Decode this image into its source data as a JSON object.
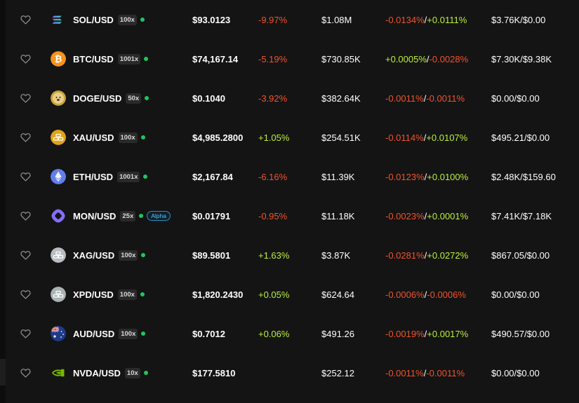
{
  "colors": {
    "positive": "#bdf13a",
    "negative": "#f0532d",
    "online": "#22c55e",
    "background": "#141414"
  },
  "rows": [
    {
      "symbol": "SOL/USD",
      "leverage": "100x",
      "icon": "solana-icon",
      "price": "$93.0123",
      "change": "-9.97%",
      "change_dir": "neg",
      "volume": "$1.08M",
      "funding_long": "-0.0134%",
      "funding_long_dir": "neg",
      "slash": "/",
      "funding_short": "+0.0111%",
      "funding_short_dir": "pos",
      "open_interest": "$3.76K/$0.00"
    },
    {
      "symbol": "BTC/USD",
      "leverage": "1001x",
      "icon": "bitcoin-icon",
      "price": "$74,167.14",
      "change": "-5.19%",
      "change_dir": "neg",
      "volume": "$730.85K",
      "funding_long": "+0.0005%",
      "funding_long_dir": "pos",
      "slash": "/",
      "funding_short": "-0.0028%",
      "funding_short_dir": "neg",
      "open_interest": "$7.30K/$9.38K"
    },
    {
      "symbol": "DOGE/USD",
      "leverage": "50x",
      "icon": "dogecoin-icon",
      "price": "$0.1040",
      "change": "-3.92%",
      "change_dir": "neg",
      "volume": "$382.64K",
      "funding_long": "-0.0011%",
      "funding_long_dir": "neg",
      "slash": "/",
      "funding_short": "-0.0011%",
      "funding_short_dir": "neg",
      "open_interest": "$0.00/$0.00"
    },
    {
      "symbol": "XAU/USD",
      "leverage": "100x",
      "icon": "gold-bars-icon",
      "price": "$4,985.2800",
      "change": "+1.05%",
      "change_dir": "pos",
      "volume": "$254.51K",
      "funding_long": "-0.0114%",
      "funding_long_dir": "neg",
      "slash": "/",
      "funding_short": "+0.0107%",
      "funding_short_dir": "pos",
      "open_interest": "$495.21/$0.00"
    },
    {
      "symbol": "ETH/USD",
      "leverage": "1001x",
      "icon": "ethereum-icon",
      "price": "$2,167.84",
      "change": "-6.16%",
      "change_dir": "neg",
      "volume": "$11.39K",
      "funding_long": "-0.0123%",
      "funding_long_dir": "neg",
      "slash": "/",
      "funding_short": "+0.0100%",
      "funding_short_dir": "pos",
      "open_interest": "$2.48K/$159.60"
    },
    {
      "symbol": "MON/USD",
      "leverage": "25x",
      "icon": "monad-icon",
      "badge": "Alpha",
      "price": "$0.01791",
      "change": "-0.95%",
      "change_dir": "neg",
      "volume": "$11.18K",
      "funding_long": "-0.0023%",
      "funding_long_dir": "neg",
      "slash": "/",
      "funding_short": "+0.0001%",
      "funding_short_dir": "pos",
      "open_interest": "$7.41K/$7.18K"
    },
    {
      "symbol": "XAG/USD",
      "leverage": "100x",
      "icon": "silver-bars-icon",
      "price": "$89.5801",
      "change": "+1.63%",
      "change_dir": "pos",
      "volume": "$3.87K",
      "funding_long": "-0.0281%",
      "funding_long_dir": "neg",
      "slash": "/",
      "funding_short": "+0.0272%",
      "funding_short_dir": "pos",
      "open_interest": "$867.05/$0.00"
    },
    {
      "symbol": "XPD/USD",
      "leverage": "100x",
      "icon": "palladium-bars-icon",
      "price": "$1,820.2430",
      "change": "+0.05%",
      "change_dir": "pos",
      "volume": "$624.64",
      "funding_long": "-0.0006%",
      "funding_long_dir": "neg",
      "slash": "/",
      "funding_short": "-0.0006%",
      "funding_short_dir": "neg",
      "open_interest": "$0.00/$0.00"
    },
    {
      "symbol": "AUD/USD",
      "leverage": "100x",
      "icon": "australia-flag-icon",
      "price": "$0.7012",
      "change": "+0.06%",
      "change_dir": "pos",
      "volume": "$491.26",
      "funding_long": "-0.0019%",
      "funding_long_dir": "neg",
      "slash": "/",
      "funding_short": "+0.0017%",
      "funding_short_dir": "pos",
      "open_interest": "$490.57/$0.00"
    },
    {
      "symbol": "NVDA/USD",
      "leverage": "10x",
      "icon": "nvidia-icon",
      "price": "$177.5810",
      "change": "",
      "change_dir": "none",
      "volume": "$252.12",
      "funding_long": "-0.0011%",
      "funding_long_dir": "neg",
      "slash": "/",
      "funding_short": "-0.0011%",
      "funding_short_dir": "neg",
      "open_interest": "$0.00/$0.00"
    }
  ]
}
